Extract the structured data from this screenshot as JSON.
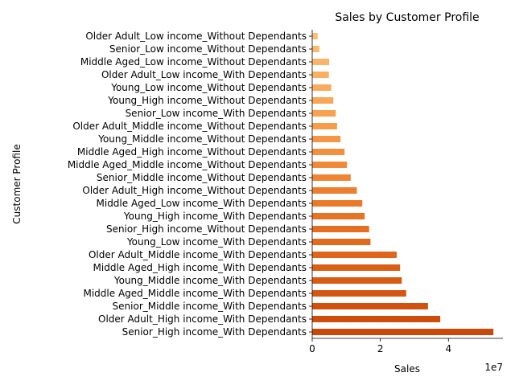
{
  "chart_data": {
    "type": "bar",
    "orientation": "horizontal",
    "title": "Sales by Customer Profile",
    "xlabel": "Sales",
    "ylabel": "Customer Profile",
    "x_offset_text": "1e7",
    "xlim": [
      0,
      56000000
    ],
    "x_ticks": [
      {
        "value": 0,
        "label": "0"
      },
      {
        "value": 20000000,
        "label": "2"
      },
      {
        "value": 40000000,
        "label": "4"
      }
    ],
    "grid": false,
    "legend": "none",
    "categories": [
      "Senior_High income_With Dependants",
      "Older Adult_High income_With Dependants",
      "Senior_Middle income_With Dependants",
      "Middle Aged_Middle income_With Dependants",
      "Young_Middle income_With Dependants",
      "Middle Aged_High income_With Dependants",
      "Older Adult_Middle income_With Dependants",
      "Young_Low income_With Dependants",
      "Senior_High income_Without Dependants",
      "Young_High income_With Dependants",
      "Middle Aged_Low income_With Dependants",
      "Older Adult_High income_Without Dependants",
      "Senior_Middle income_Without Dependants",
      "Middle Aged_Middle income_Without Dependants",
      "Middle Aged_High income_Without Dependants",
      "Young_Middle income_Without Dependants",
      "Older Adult_Middle income_Without Dependants",
      "Senior_Low income_With Dependants",
      "Young_High income_Without Dependants",
      "Young_Low income_Without Dependants",
      "Older Adult_Low income_With Dependants",
      "Middle Aged_Low income_Without Dependants",
      "Senior_Low income_Without Dependants",
      "Older Adult_Low income_Without Dependants"
    ],
    "values": [
      53200000,
      37600000,
      34000000,
      27600000,
      26300000,
      25800000,
      24800000,
      17100000,
      16700000,
      15400000,
      14700000,
      13100000,
      11300000,
      10200000,
      9500000,
      8300000,
      7300000,
      6900000,
      6200000,
      5600000,
      4900000,
      5000000,
      2100000,
      1600000
    ],
    "colors": [
      "#c9490a",
      "#cc4d0c",
      "#d0520e",
      "#d45711",
      "#d75b14",
      "#db6017",
      "#de651a",
      "#e16a1d",
      "#e46f21",
      "#e77425",
      "#ea7a29",
      "#ec7f2e",
      "#ef8533",
      "#f18b39",
      "#f3903f",
      "#f49645",
      "#f69c4b",
      "#f7a151",
      "#f8a657",
      "#f9ab5d",
      "#fab063",
      "#fbb469",
      "#fcb86f",
      "#fdbc74"
    ]
  }
}
